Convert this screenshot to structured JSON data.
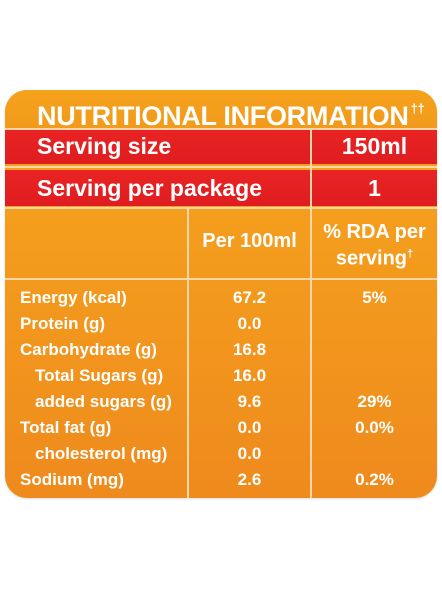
{
  "title": "NUTRITIONAL INFORMATION",
  "title_mark": "††",
  "serving_size": {
    "label": "Serving size",
    "value": "150ml"
  },
  "servings_per_package": {
    "label": "Serving per package",
    "value": "1"
  },
  "columns": {
    "per100": "Per 100ml",
    "rda_line1": "% RDA per",
    "rda_line2": "serving",
    "rda_mark": "†"
  },
  "rows": [
    {
      "name": "Energy (kcal)",
      "per100": "67.2",
      "rda": "5%"
    },
    {
      "name": "Protein (g)",
      "per100": "0.0",
      "rda": ""
    },
    {
      "name": "Carbohydrate (g)",
      "per100": "16.8",
      "rda": ""
    },
    {
      "name": "Total Sugars (g)",
      "per100": "16.0",
      "rda": ""
    },
    {
      "name": "added sugars (g)",
      "per100": "9.6",
      "rda": "29%"
    },
    {
      "name": "Total fat (g)",
      "per100": "0.0",
      "rda": "0.0%"
    },
    {
      "name": "cholesterol (mg)",
      "per100": "0.0",
      "rda": ""
    },
    {
      "name": "Sodium (mg)",
      "per100": "2.6",
      "rda": "0.2%"
    }
  ],
  "colors": {
    "panel": "#f39a1d",
    "red": "#e22020",
    "text": "#ffffff"
  }
}
